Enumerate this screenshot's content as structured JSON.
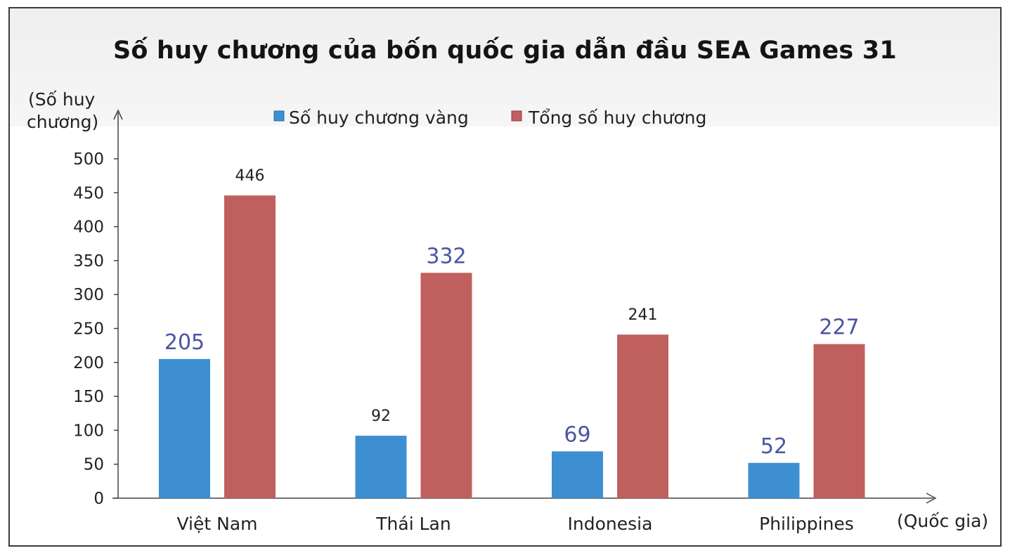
{
  "chart_data": {
    "type": "bar",
    "title": "Số huy chương của bốn quốc gia dẫn đầu SEA Games 31",
    "ylabel_line1": "(Số huy",
    "ylabel_line2": "chương)",
    "xlabel": "(Quốc gia)",
    "categories": [
      "Việt Nam",
      "Thái Lan",
      "Indonesia",
      "Philippines"
    ],
    "series": [
      {
        "name": "Số huy chương vàng",
        "color": "#3d8fd1",
        "values": [
          205,
          92,
          69,
          52
        ]
      },
      {
        "name": "Tổng số huy chương",
        "color": "#c0605e",
        "values": [
          446,
          332,
          241,
          227
        ]
      }
    ],
    "ylim": [
      0,
      500
    ],
    "yticks": [
      "0",
      "50",
      "100",
      "150",
      "200",
      "250",
      "300",
      "350",
      "400",
      "450",
      "500"
    ],
    "legend_position": "top",
    "grid": false,
    "label_colors": {
      "dark": "#222222",
      "blue": "#4a55a2"
    }
  }
}
